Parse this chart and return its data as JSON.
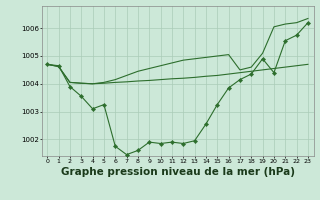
{
  "background_color": "#cce8d8",
  "grid_color": "#aaccb8",
  "line_color": "#2d6e2d",
  "xlabel": "Graphe pression niveau de la mer (hPa)",
  "xlabel_fontsize": 7.5,
  "ylim": [
    1001.4,
    1006.8
  ],
  "yticks": [
    1002,
    1003,
    1004,
    1005,
    1006
  ],
  "xlim": [
    -0.5,
    23.5
  ],
  "xticks": [
    0,
    1,
    2,
    3,
    4,
    5,
    6,
    7,
    8,
    9,
    10,
    11,
    12,
    13,
    14,
    15,
    16,
    17,
    18,
    19,
    20,
    21,
    22,
    23
  ],
  "s1": [
    1004.7,
    1004.65,
    1003.9,
    1003.55,
    1003.1,
    1003.25,
    1001.75,
    1001.45,
    1001.6,
    1001.9,
    1001.85,
    1001.9,
    1001.85,
    1001.95,
    1002.55,
    1003.25,
    1003.85,
    1004.15,
    1004.35,
    1004.9,
    1004.4,
    1005.55,
    1005.75,
    1006.2
  ],
  "s2": [
    1004.7,
    1004.62,
    1004.05,
    1004.02,
    1004.0,
    1004.02,
    1004.05,
    1004.07,
    1004.1,
    1004.12,
    1004.15,
    1004.18,
    1004.2,
    1004.23,
    1004.27,
    1004.3,
    1004.35,
    1004.4,
    1004.45,
    1004.5,
    1004.55,
    1004.6,
    1004.65,
    1004.7
  ],
  "s3": [
    1004.7,
    1004.62,
    1004.05,
    1004.02,
    1004.0,
    1004.05,
    1004.15,
    1004.3,
    1004.45,
    1004.55,
    1004.65,
    1004.75,
    1004.85,
    1004.9,
    1004.95,
    1005.0,
    1005.05,
    1004.5,
    1004.6,
    1005.1,
    1006.05,
    1006.15,
    1006.2,
    1006.35
  ]
}
